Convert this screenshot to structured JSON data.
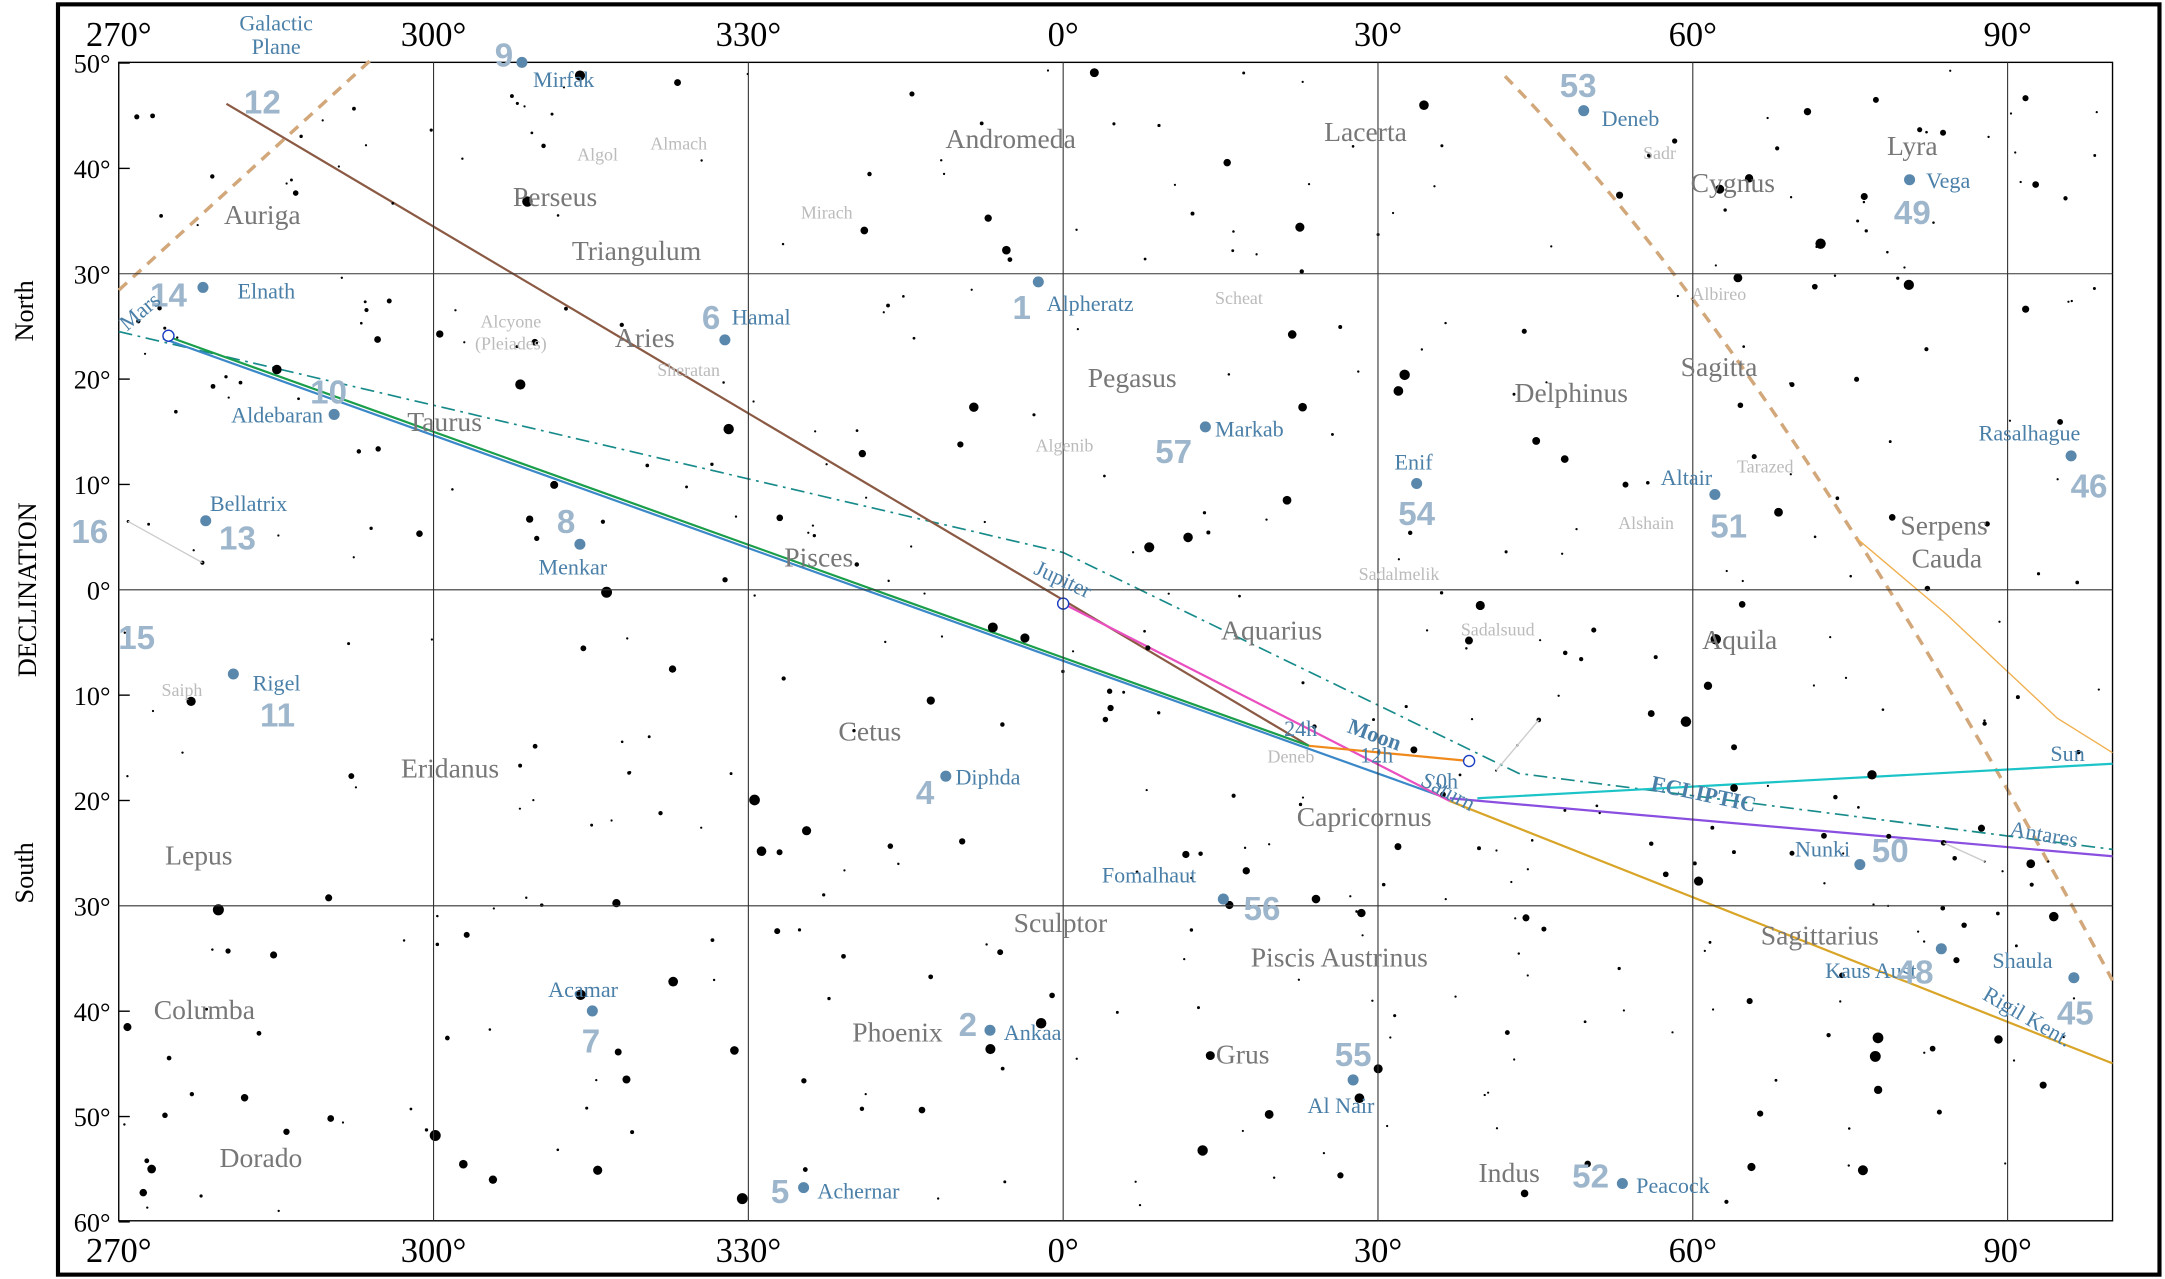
{
  "map": {
    "ra_ticks": [
      {
        "value": 270,
        "label": "270°"
      },
      {
        "value": 300,
        "label": "300°"
      },
      {
        "value": 330,
        "label": "330°"
      },
      {
        "value": 0,
        "label": "0°"
      },
      {
        "value": 30,
        "label": "30°"
      },
      {
        "value": 60,
        "label": "60°"
      },
      {
        "value": 90,
        "label": "90°"
      }
    ],
    "dec_ticks": [
      {
        "value": 50,
        "label": "50°"
      },
      {
        "value": 40,
        "label": "40°"
      },
      {
        "value": 30,
        "label": "30°"
      },
      {
        "value": 20,
        "label": "20°"
      },
      {
        "value": 10,
        "label": "10°"
      },
      {
        "value": 0,
        "label": "0°"
      },
      {
        "value": -10,
        "label": "10°"
      },
      {
        "value": -20,
        "label": "20°"
      },
      {
        "value": -30,
        "label": "30°"
      },
      {
        "value": -40,
        "label": "40°"
      },
      {
        "value": -50,
        "label": "50°"
      },
      {
        "value": -60,
        "label": "60°"
      }
    ],
    "axis_label": "DECLINATION",
    "north": "North",
    "south": "South",
    "constellations": [
      "Andromeda",
      "Lacerta",
      "Perseus",
      "Auriga",
      "Triangulum",
      "Cygnus",
      "Lyra",
      "Aries",
      "Pegasus",
      "Delphinus",
      "Sagitta",
      "Taurus",
      "Pisces",
      "Serpens",
      "Cauda",
      "Aquarius",
      "Aquila",
      "Cetus",
      "Eridanus",
      "Capricornus",
      "Lepus",
      "Sculptor",
      "Piscis Austrinus",
      "Sagittarius",
      "Columba",
      "Phoenix",
      "Grus",
      "Dorado",
      "Indus"
    ],
    "stars": [
      "Mirfak",
      "Deneb",
      "Vega",
      "Elnath",
      "Hamal",
      "Alpheratz",
      "Aldebaran",
      "Markab",
      "Rasalhague",
      "Enif",
      "Bellatrix",
      "Altair",
      "Menkar",
      "Rigel",
      "Diphda",
      "Nunki",
      "Fomalhaut",
      "Kaus Aust.",
      "Shaula",
      "Acamar",
      "Ankaa",
      "Al Nair",
      "Achernar",
      "Peacock"
    ],
    "numbers": [
      "12",
      "9",
      "53",
      "49",
      "14",
      "6",
      "1",
      "10",
      "57",
      "54",
      "46",
      "16",
      "13",
      "8",
      "51",
      "15",
      "11",
      "4",
      "50",
      "56",
      "48",
      "45",
      "2",
      "55",
      "7",
      "5",
      "52"
    ],
    "faint_stars": [
      "Almach",
      "Algol",
      "Mirach",
      "Sadr",
      "Scheat",
      "Albireo",
      "Alcyone",
      "(Pleiades)",
      "Sheratan",
      "Tarazed",
      "Algenib",
      "Alshain",
      "Sadalmelik",
      "Sadalsuud",
      "Saiph",
      "Deneb"
    ],
    "solar_system": [
      "Mars",
      "Jupiter",
      "Moon",
      "Saturn",
      "Sun",
      "Antares",
      "Rigil Kent.",
      "ECLIPTIC",
      "24h",
      "12h",
      "0h",
      "Galactic",
      "Plane"
    ]
  }
}
